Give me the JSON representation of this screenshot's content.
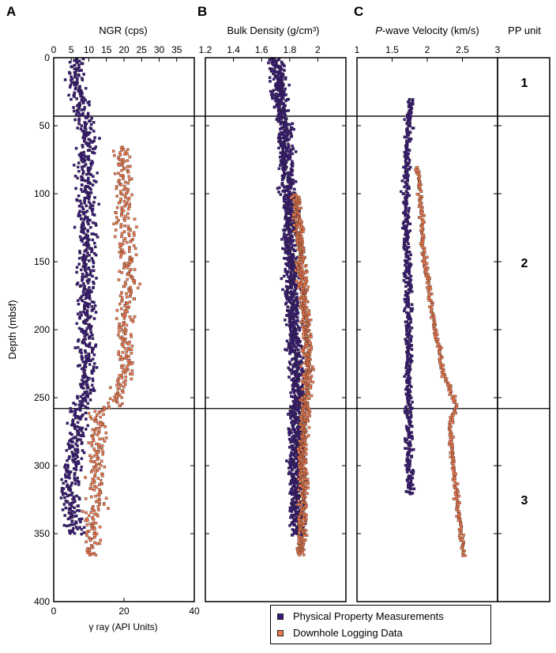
{
  "panels": [
    {
      "letter": "A",
      "title": "NGR (cps)"
    },
    {
      "letter": "B",
      "title": "Bulk Density (g/cm³)"
    },
    {
      "letter": "C",
      "title_italic": "P",
      "title_rest": "-wave Velocity (km/s)"
    },
    {
      "title": "PP unit"
    }
  ],
  "ylabel": "Depth (mbsf)",
  "gamma_axis_label": "γ ray (API Units)",
  "legend": {
    "pp_label": "Physical Property Measurements",
    "log_label": "Downhole Logging Data",
    "pp_color": "#3b1a7a",
    "log_color": "#f07a4f"
  },
  "pp_units": [
    {
      "label": "1",
      "top": 0,
      "bottom": 43
    },
    {
      "label": "2",
      "top": 43,
      "bottom": 258
    },
    {
      "label": "3",
      "top": 258,
      "bottom": 400
    }
  ],
  "chart_data": [
    {
      "type": "scatter",
      "panel": "A",
      "title": "NGR (cps)",
      "xlabel_top": "NGR (cps)",
      "xlabel_bottom": "γ ray (API Units)",
      "ylabel": "Depth (mbsf)",
      "xlim_top": [
        0,
        40
      ],
      "xticks_top": [
        0,
        5,
        10,
        15,
        20,
        25,
        30,
        35
      ],
      "xlim_bottom": [
        0,
        40
      ],
      "xticks_bottom": [
        0,
        20,
        40
      ],
      "ylim": [
        400,
        0
      ],
      "yticks": [
        0,
        50,
        100,
        150,
        200,
        250,
        300,
        350,
        400
      ],
      "series": [
        {
          "name": "Physical Property Measurements",
          "color": "#3b1a7a",
          "profile": [
            [
              0,
              6
            ],
            [
              20,
              6
            ],
            [
              30,
              7
            ],
            [
              40,
              8
            ],
            [
              50,
              9
            ],
            [
              80,
              9
            ],
            [
              100,
              9
            ],
            [
              150,
              9
            ],
            [
              200,
              9
            ],
            [
              230,
              9
            ],
            [
              250,
              8
            ],
            [
              258,
              6
            ],
            [
              280,
              6
            ],
            [
              300,
              5
            ],
            [
              320,
              4
            ],
            [
              335,
              5
            ],
            [
              350,
              6
            ]
          ],
          "spread": 4
        },
        {
          "name": "Downhole Logging Data",
          "color": "#f07a4f",
          "profile": [
            [
              65,
              19
            ],
            [
              100,
              20
            ],
            [
              130,
              20
            ],
            [
              160,
              21
            ],
            [
              200,
              20
            ],
            [
              230,
              20
            ],
            [
              255,
              17
            ],
            [
              260,
              12
            ],
            [
              300,
              12
            ],
            [
              330,
              12
            ],
            [
              340,
              10
            ],
            [
              365,
              11
            ]
          ],
          "spread": 4
        }
      ]
    },
    {
      "type": "scatter",
      "panel": "B",
      "title": "Bulk Density (g/cm³)",
      "xlim": [
        1.2,
        2.2
      ],
      "xticks": [
        1.2,
        1.4,
        1.6,
        1.8,
        2.0
      ],
      "xtick_labels": [
        "1.2",
        "1.4",
        "1.6",
        "1.8",
        "2"
      ],
      "ylim": [
        400,
        0
      ],
      "series": [
        {
          "name": "Physical Property Measurements",
          "color": "#3b1a7a",
          "profile": [
            [
              0,
              1.7
            ],
            [
              40,
              1.73
            ],
            [
              50,
              1.76
            ],
            [
              100,
              1.78
            ],
            [
              150,
              1.8
            ],
            [
              200,
              1.82
            ],
            [
              250,
              1.85
            ],
            [
              260,
              1.84
            ],
            [
              300,
              1.83
            ],
            [
              330,
              1.84
            ],
            [
              350,
              1.85
            ]
          ],
          "spread": 0.08
        },
        {
          "name": "Downhole Logging Data",
          "color": "#f07a4f",
          "profile": [
            [
              100,
              1.83
            ],
            [
              130,
              1.86
            ],
            [
              160,
              1.88
            ],
            [
              200,
              1.91
            ],
            [
              230,
              1.92
            ],
            [
              260,
              1.9
            ],
            [
              300,
              1.88
            ],
            [
              330,
              1.89
            ],
            [
              365,
              1.87
            ]
          ],
          "spread": 0.05
        }
      ]
    },
    {
      "type": "scatter",
      "panel": "C",
      "title": "P-wave Velocity (km/s)",
      "xlim": [
        1,
        3
      ],
      "xticks": [
        1,
        1.5,
        2,
        2.5,
        3
      ],
      "xtick_labels": [
        "1",
        "1.5",
        "2",
        "2.5",
        "3"
      ],
      "ylim": [
        400,
        0
      ],
      "series": [
        {
          "name": "Physical Property Measurements",
          "color": "#3b1a7a",
          "profile": [
            [
              30,
              1.75
            ],
            [
              60,
              1.7
            ],
            [
              100,
              1.68
            ],
            [
              150,
              1.7
            ],
            [
              200,
              1.72
            ],
            [
              250,
              1.72
            ],
            [
              300,
              1.73
            ],
            [
              320,
              1.74
            ]
          ],
          "spread": 0.08
        },
        {
          "name": "Downhole Logging Data",
          "color": "#f07a4f",
          "profile": [
            [
              80,
              1.85
            ],
            [
              100,
              1.88
            ],
            [
              150,
              1.95
            ],
            [
              200,
              2.1
            ],
            [
              230,
              2.2
            ],
            [
              255,
              2.4
            ],
            [
              270,
              2.3
            ],
            [
              300,
              2.35
            ],
            [
              330,
              2.42
            ],
            [
              365,
              2.5
            ]
          ],
          "spread": 0.05
        }
      ]
    }
  ]
}
